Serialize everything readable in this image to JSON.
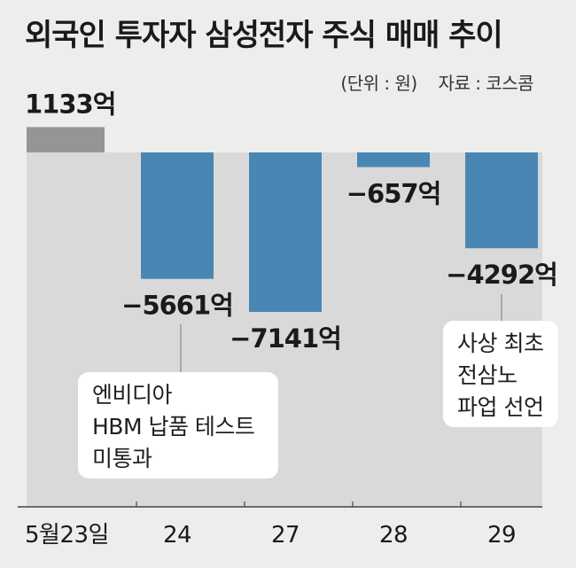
{
  "chart_data": {
    "type": "bar",
    "title": "외국인 투자자 삼성전자 주식 매매 추이",
    "unit_note": "(단위 : 원)",
    "source_note": "자료 : 코스콤",
    "categories": [
      "5월23일",
      "24",
      "27",
      "28",
      "29"
    ],
    "values": [
      1133,
      -5661,
      -7141,
      -657,
      -4292
    ],
    "value_labels": [
      "1133억",
      "−5661억",
      "−7141억",
      "−657억",
      "−4292억"
    ],
    "bar_colors": [
      "#959595",
      "#4a86b4",
      "#4a86b4",
      "#4a86b4",
      "#4a86b4"
    ],
    "annotations": [
      {
        "category": "24",
        "lines": [
          "엔비디아",
          "HBM 납품 테스트",
          "미통과"
        ]
      },
      {
        "category": "29",
        "lines": [
          "사상 최초",
          "전삼노",
          "파업 선언"
        ]
      }
    ]
  },
  "colors": {
    "background": "#ededec",
    "plot_area": "#d9d9d9",
    "positive_bar": "#959595",
    "negative_bar": "#4a86b4"
  }
}
